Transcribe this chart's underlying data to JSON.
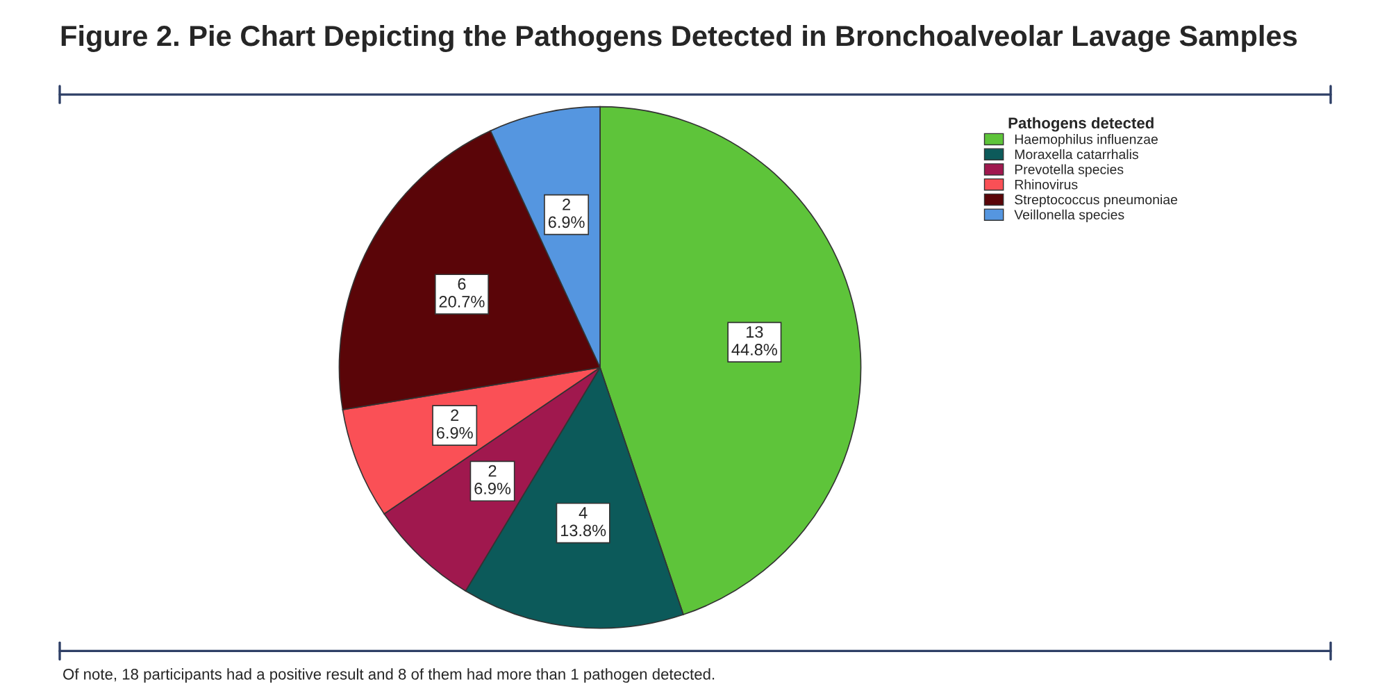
{
  "chart_data": {
    "type": "pie",
    "title": "Figure 2. Pie Chart Depicting the Pathogens Detected in Bronchoalveolar Lavage Samples",
    "legend_title": "Pathogens detected",
    "categories": [
      "Haemophilus influenzae",
      "Moraxella catarrhalis",
      "Prevotella species",
      "Rhinovirus",
      "Streptococcus pneumoniae",
      "Veillonella species"
    ],
    "values": [
      13,
      4,
      2,
      2,
      6,
      2
    ],
    "value_labels": [
      "13\n44.8%",
      "4\n13.8%",
      "2\n6.9%",
      "2\n6.9%",
      "6\n20.7%",
      "2\n6.9%"
    ],
    "colors": [
      "#5ec43a",
      "#0c5a5a",
      "#a0184e",
      "#fa5056",
      "#5a0508",
      "#5596e0"
    ],
    "legend": "top right",
    "annotations": [
      "Of note, 18 participants had a positive result and 8 of them had more than 1 pathogen detected."
    ]
  }
}
